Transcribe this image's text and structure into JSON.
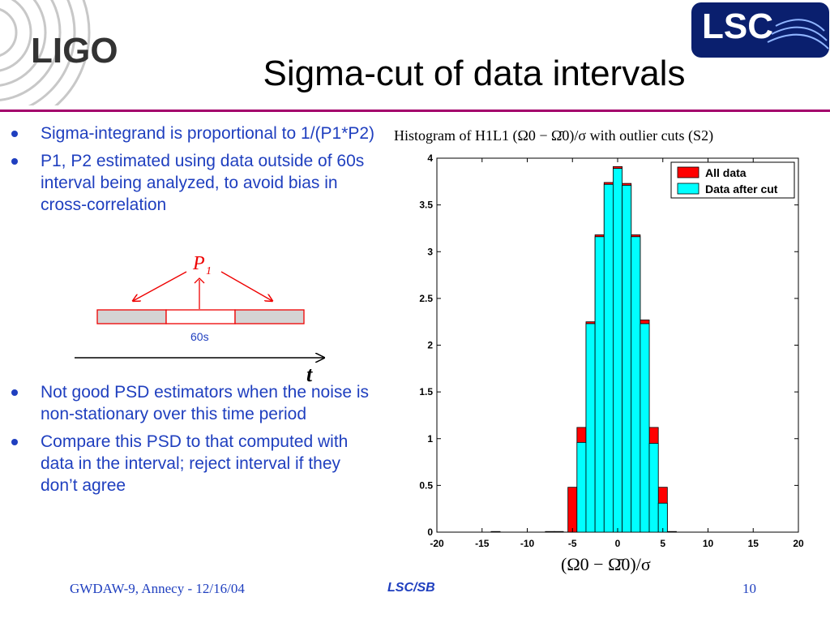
{
  "slide": {
    "title": "Sigma-cut of data intervals",
    "logo_left_text": "LIGO",
    "logo_right_text": "LSC",
    "bullets_top": [
      "Sigma-integrand is proportional to 1/(P1*P2)",
      "P1, P2 estimated using data outside of 60s interval being analyzed, to avoid bias in cross-correlation"
    ],
    "bullets_bottom": [
      "Not good PSD estimators when the noise is non-stationary over this time period",
      "Compare this PSD to that computed with data in the interval; reject interval if they don’t agree"
    ],
    "diagram": {
      "p_label": "P",
      "p_sub": "1",
      "interval_label": "60s",
      "time_label": "t"
    },
    "footer": {
      "left": "GWDAW-9, Annecy - 12/16/04",
      "center": "LSC/SB",
      "page": "10"
    },
    "colors": {
      "accent_rule": "#a3006b",
      "bullet_text": "#1f3fbf",
      "bar_all": "#ff0000",
      "bar_cut": "#00ffff"
    }
  },
  "chart_data": {
    "type": "bar",
    "title": "Histogram of H1L1 (Ω0 − Ω̄0)/σ with outlier cuts (S2)",
    "xlabel": "(Ω0 − Ω̄0)/σ",
    "xlim": [
      -20,
      20
    ],
    "ylim": [
      0,
      4
    ],
    "xticks": [
      -20,
      -15,
      -10,
      -5,
      0,
      5,
      10,
      15,
      20
    ],
    "yticks": [
      0,
      0.5,
      1,
      1.5,
      2,
      2.5,
      3,
      3.5,
      4
    ],
    "ytick_labels": [
      "0",
      "0.5",
      "1",
      "1.5",
      "2",
      "2.5",
      "3",
      "3.5",
      "4"
    ],
    "legend_position": "top-right",
    "bin_width": 1,
    "bin_centers": [
      -13.5,
      -7.5,
      -6.5,
      -5,
      -4,
      -3,
      -2,
      -1,
      0,
      1,
      2,
      3,
      4,
      5,
      6
    ],
    "series": [
      {
        "name": "All data",
        "color": "#ff0000",
        "values": [
          0.005,
          0.005,
          0.005,
          0.48,
          1.12,
          2.25,
          3.18,
          3.74,
          3.91,
          3.73,
          3.18,
          2.27,
          1.12,
          0.48,
          0.005
        ]
      },
      {
        "name": "Data after cut",
        "color": "#00ffff",
        "values": [
          0,
          0,
          0,
          0,
          0.96,
          2.23,
          3.16,
          3.72,
          3.89,
          3.71,
          3.16,
          2.23,
          0.95,
          0.31,
          0
        ]
      }
    ]
  }
}
